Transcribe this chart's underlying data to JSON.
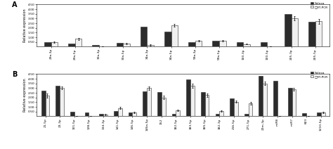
{
  "panel_A": {
    "categories": [
      "29a-3p",
      "29a-5p",
      "30a-3p",
      "30a-5p",
      "34a-3p",
      "34a-5p",
      "99a-3p",
      "99a-5p",
      "100-3p",
      "100-5p",
      "205-3p",
      "205-5p"
    ],
    "solexa": [
      0.45,
      0.35,
      0.15,
      0.38,
      2.1,
      1.6,
      0.45,
      0.65,
      0.5,
      0.5,
      3.5,
      2.65
    ],
    "rtpcr": [
      0.48,
      0.82,
      0.0,
      0.32,
      0.18,
      2.28,
      0.62,
      0.6,
      0.28,
      0.0,
      3.05,
      2.7
    ],
    "rtpcr_err": [
      0.05,
      0.1,
      0.0,
      0.06,
      0.1,
      0.12,
      0.06,
      0.07,
      0.05,
      0.0,
      0.22,
      0.25
    ],
    "ylim": [
      0,
      4.5
    ],
    "yticks": [
      0.5,
      1.0,
      1.5,
      2.0,
      2.5,
      3.0,
      3.5,
      4.0,
      4.5
    ]
  },
  "panel_B": {
    "categories": [
      "21-5p",
      "23-3p",
      "101-5p",
      "128-5p",
      "134-3p",
      "141-5p",
      "146-5p",
      "146a-5p",
      "152",
      "182-5p",
      "183-5p",
      "185-5p",
      "182-3p",
      "216-5p",
      "271-5p",
      "22m-3p",
      "miR8",
      "miR7",
      "823",
      "1210-5p"
    ],
    "solexa": [
      2.7,
      3.25,
      0.45,
      0.38,
      0.28,
      0.52,
      0.42,
      2.65,
      2.6,
      0.28,
      3.9,
      2.55,
      0.28,
      1.9,
      0.22,
      4.3,
      3.75,
      3.0,
      0.32,
      0.42
    ],
    "rtpcr": [
      2.2,
      3.0,
      0.0,
      0.0,
      0.18,
      0.88,
      0.38,
      3.0,
      2.0,
      0.62,
      3.25,
      2.25,
      0.52,
      1.55,
      1.4,
      3.5,
      0.0,
      2.85,
      0.0,
      0.42
    ],
    "rtpcr_err": [
      0.22,
      0.15,
      0.0,
      0.0,
      0.05,
      0.1,
      0.06,
      0.2,
      0.18,
      0.08,
      0.2,
      0.18,
      0.08,
      0.12,
      0.15,
      0.2,
      0.0,
      0.15,
      0.0,
      0.06
    ],
    "ylim": [
      0,
      4.5
    ],
    "yticks": [
      0.5,
      1.0,
      1.5,
      2.0,
      2.5,
      3.0,
      3.5,
      4.0,
      4.5
    ]
  },
  "bar_width": 0.28,
  "solexa_color": "#2b2b2b",
  "rtpcr_color": "#f0f0f0",
  "rtpcr_edge": "#2b2b2b",
  "ylabel": "Relative expression",
  "legend_solexa": "Solexa",
  "legend_rtpcr": "□RT-PCR",
  "label_A": "A",
  "label_B": "B",
  "ytick_labels": [
    "0.50",
    "1.00",
    "1.50",
    "2.00",
    "2.50",
    "3.00",
    "3.50",
    "4.00",
    "4.50"
  ]
}
